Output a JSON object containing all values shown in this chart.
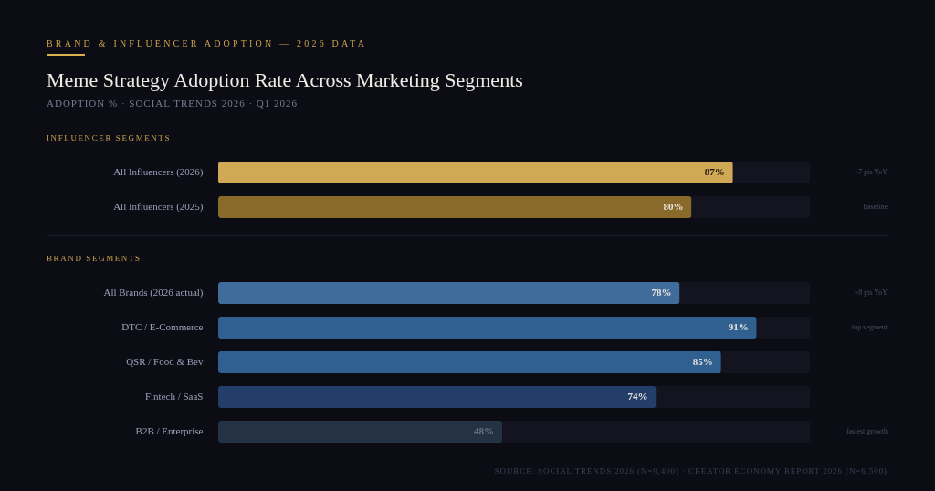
{
  "chart_data": [
    {
      "type": "other",
      "title": "Meme Strategy Adoption Rate Across Marketing Segments",
      "subtitle": "ADOPTION % · SOCIAL TRENDS 2026 · Q1 2026",
      "annotations": [
        "BRAND & INFLUENCER ADOPTION — 2026 DATA"
      ]
    },
    {
      "type": "bar",
      "orientation": "horizontal",
      "title": "INFLUENCER SEGMENTS",
      "categories": [
        "All Influencers (2026)",
        "All Influencers (2025)"
      ],
      "values": [
        87,
        80
      ],
      "value_labels": [
        "87%",
        "80%"
      ],
      "colors": [
        "#cfa955",
        "#8a6a2a"
      ],
      "xlim": [
        0,
        100
      ],
      "tick_labels": "y",
      "annotations": [
        "+7 pts YoY",
        "baseline"
      ]
    },
    {
      "type": "bar",
      "orientation": "horizontal",
      "title": "BRAND SEGMENTS",
      "categories": [
        "All Brands (2026 actual)",
        "DTC / E-Commerce",
        "QSR / Food & Bev",
        "Fintech / SaaS",
        "B2B / Enterprise"
      ],
      "values": [
        78,
        91,
        85,
        74,
        48
      ],
      "value_labels": [
        "78%",
        "91%",
        "85%",
        "74%",
        "48%"
      ],
      "colors": [
        "#406c9c",
        "#2f6090",
        "#2f6090",
        "#243e6a",
        "#243244"
      ],
      "xlim": [
        0,
        100
      ],
      "tick_labels": "y",
      "annotations": [
        "+8 pts YoY",
        "top segment",
        "fastest growth",
        "SOURCE: SOCIAL TRENDS 2026 (N=9,400) · CREATOR ECONOMY REPORT 2026 (N=6,500)"
      ]
    }
  ]
}
